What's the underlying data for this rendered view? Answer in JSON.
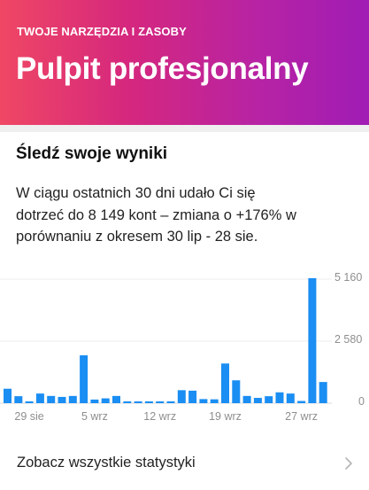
{
  "header": {
    "kicker": "TWOJE NARZĘDZIA I ZASOBY",
    "title": "Pulpit profesjonalny",
    "gradient_colors": [
      "#ef4764",
      "#d5277e",
      "#b723a4",
      "#a01cb5"
    ]
  },
  "results": {
    "title": "Śledź swoje wyniki",
    "description_line1": "W ciągu ostatnich 30 dni udało Ci się",
    "description_line2": "dotrzeć do 8 149 kont – zmiana o +176% w",
    "description_line3": "porównaniu z okresem 30 lip - 28 sie."
  },
  "chart_data": {
    "type": "bar",
    "color": "#1a8ef3",
    "x_ticks": [
      "29 sie",
      "5 wrz",
      "12 wrz",
      "19 wrz",
      "27 wrz"
    ],
    "y_ticks": [
      "5 160",
      "2 580",
      "0"
    ],
    "ylim": [
      0,
      5160
    ],
    "values": [
      600,
      290,
      50,
      400,
      300,
      260,
      300,
      1990,
      150,
      200,
      300,
      70,
      55,
      50,
      50,
      30,
      540,
      520,
      170,
      160,
      1650,
      950,
      300,
      220,
      290,
      450,
      400,
      90,
      5200,
      880
    ]
  },
  "footer": {
    "link_label": "Zobacz wszystkie statystyki",
    "chevron_icon": "chevron-right-icon"
  }
}
